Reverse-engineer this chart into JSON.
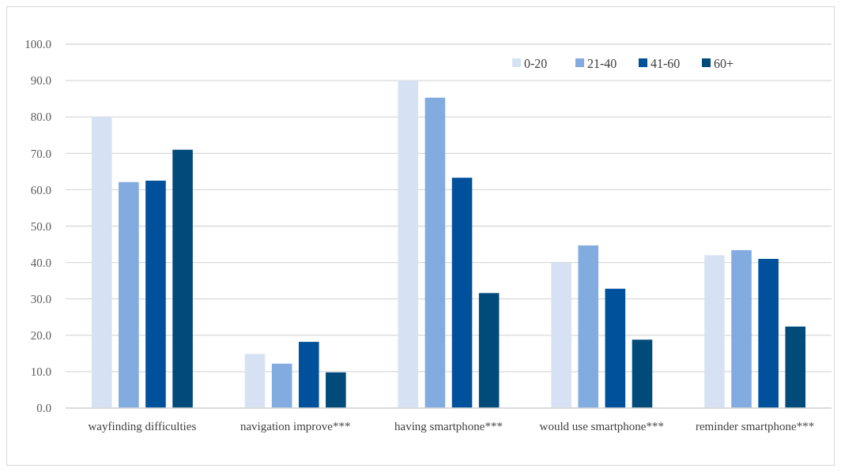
{
  "chart_data": {
    "type": "bar",
    "categories": [
      "wayfinding difficulties",
      "navigation improve***",
      "having smartphone***",
      "would use smartphone***",
      "reminder smartphone***"
    ],
    "series": [
      {
        "name": "0-20",
        "color": "#d6e2f3",
        "values": [
          80.0,
          14.9,
          90.0,
          39.9,
          42.0
        ]
      },
      {
        "name": "21-40",
        "color": "#82abdf",
        "values": [
          62.1,
          12.2,
          85.3,
          44.7,
          43.4
        ]
      },
      {
        "name": "41-60",
        "color": "#00519c",
        "values": [
          62.5,
          18.2,
          63.3,
          32.8,
          41.0
        ]
      },
      {
        "name": "60+",
        "color": "#004b7a",
        "values": [
          71.0,
          9.8,
          31.6,
          18.8,
          22.4
        ]
      }
    ],
    "ylim": [
      0,
      100
    ],
    "yticks": [
      {
        "value": 0,
        "label": "0.0"
      },
      {
        "value": 10,
        "label": "10.0"
      },
      {
        "value": 20,
        "label": "20.0"
      },
      {
        "value": 30,
        "label": "30.0"
      },
      {
        "value": 40,
        "label": "40.0"
      },
      {
        "value": 50,
        "label": "50.0"
      },
      {
        "value": 60,
        "label": "60.0"
      },
      {
        "value": 70,
        "label": "70.0"
      },
      {
        "value": 80,
        "label": "80.0"
      },
      {
        "value": 90,
        "label": "90.0"
      },
      {
        "value": 100,
        "label": "100.0"
      }
    ],
    "grid": "y",
    "legend": "top right"
  }
}
